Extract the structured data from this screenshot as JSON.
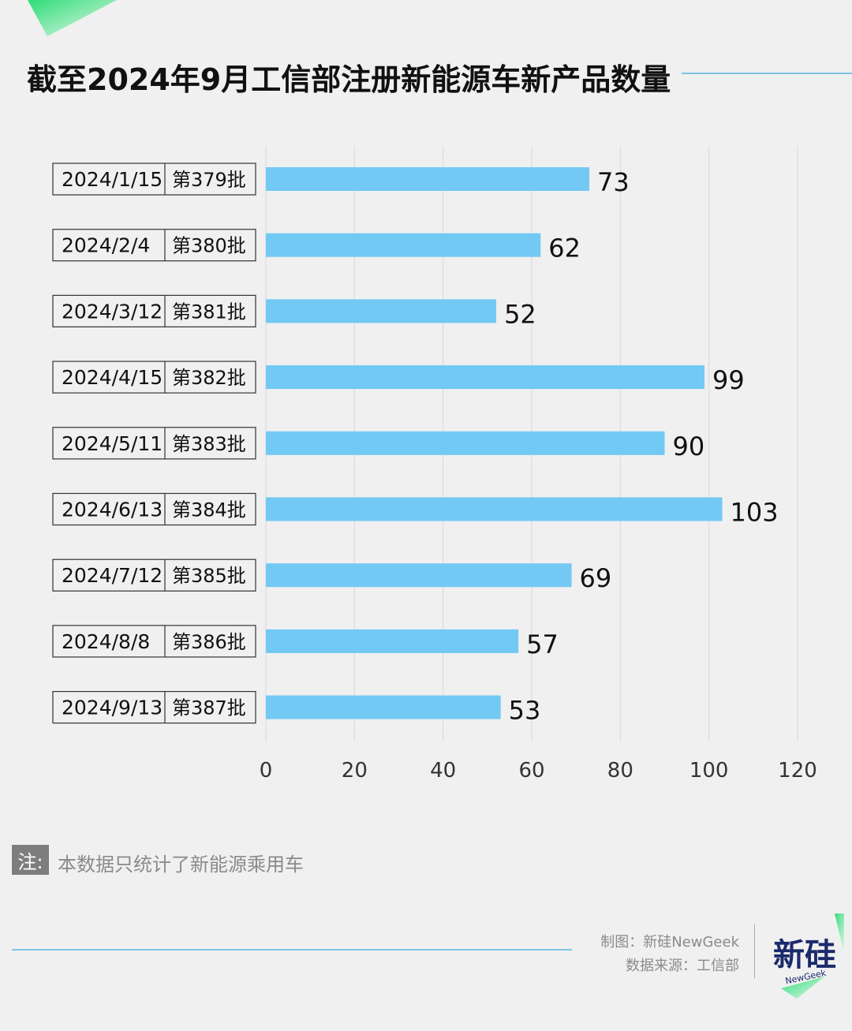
{
  "title": "截至2024年9月工信部注册新能源车新产品数量",
  "colors": {
    "bar": "#72c9f3",
    "accent_green": "#3ee07f",
    "line_blue": "#7cc4e6",
    "grid": "#d8d8d8"
  },
  "chart_data": {
    "type": "bar",
    "orientation": "horizontal",
    "categories": [
      "2024/1/15",
      "2024/2/4",
      "2024/3/12",
      "2024/4/15",
      "2024/5/11",
      "2024/6/13",
      "2024/7/12",
      "2024/8/8",
      "2024/9/13"
    ],
    "batches": [
      "第379批",
      "第380批",
      "第381批",
      "第382批",
      "第383批",
      "第384批",
      "第385批",
      "第386批",
      "第387批"
    ],
    "values": [
      73,
      62,
      52,
      99,
      90,
      103,
      69,
      57,
      53
    ],
    "xlim": [
      0,
      120
    ],
    "xticks": [
      0,
      20,
      40,
      60,
      80,
      100,
      120
    ],
    "grid": true,
    "data_labels": true
  },
  "note": {
    "label": "注:",
    "text": "本数据只统计了新能源乘用车"
  },
  "credits": {
    "maker": "制图：新硅NewGeek",
    "source": "数据来源：工信部"
  },
  "logo": {
    "text_cn": "新硅",
    "text_en": "NewGeek",
    "icon": "newgeek-logo"
  }
}
